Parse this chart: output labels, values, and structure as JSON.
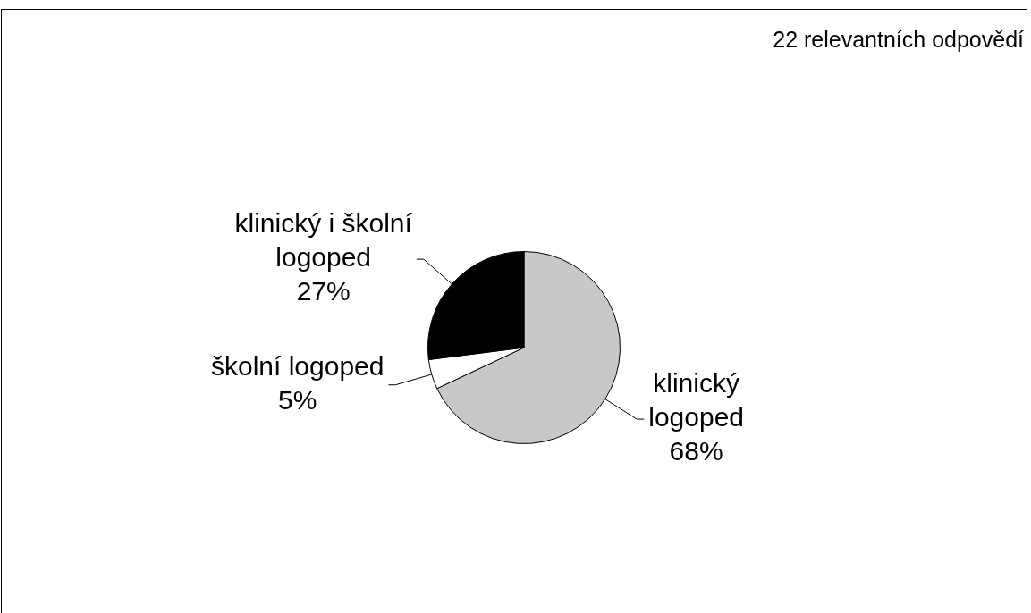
{
  "chart_data": {
    "type": "pie",
    "categories": [
      "klinický logoped",
      "školní logoped",
      "klinický i školní logoped"
    ],
    "values": [
      68,
      5,
      27
    ],
    "colors": [
      "#c8c8c8",
      "#ffffff",
      "#000000"
    ],
    "value_labels": [
      "68%",
      "5%",
      "27%"
    ],
    "annotations": [
      "22 relevantních odpovědí"
    ],
    "legend": false
  }
}
